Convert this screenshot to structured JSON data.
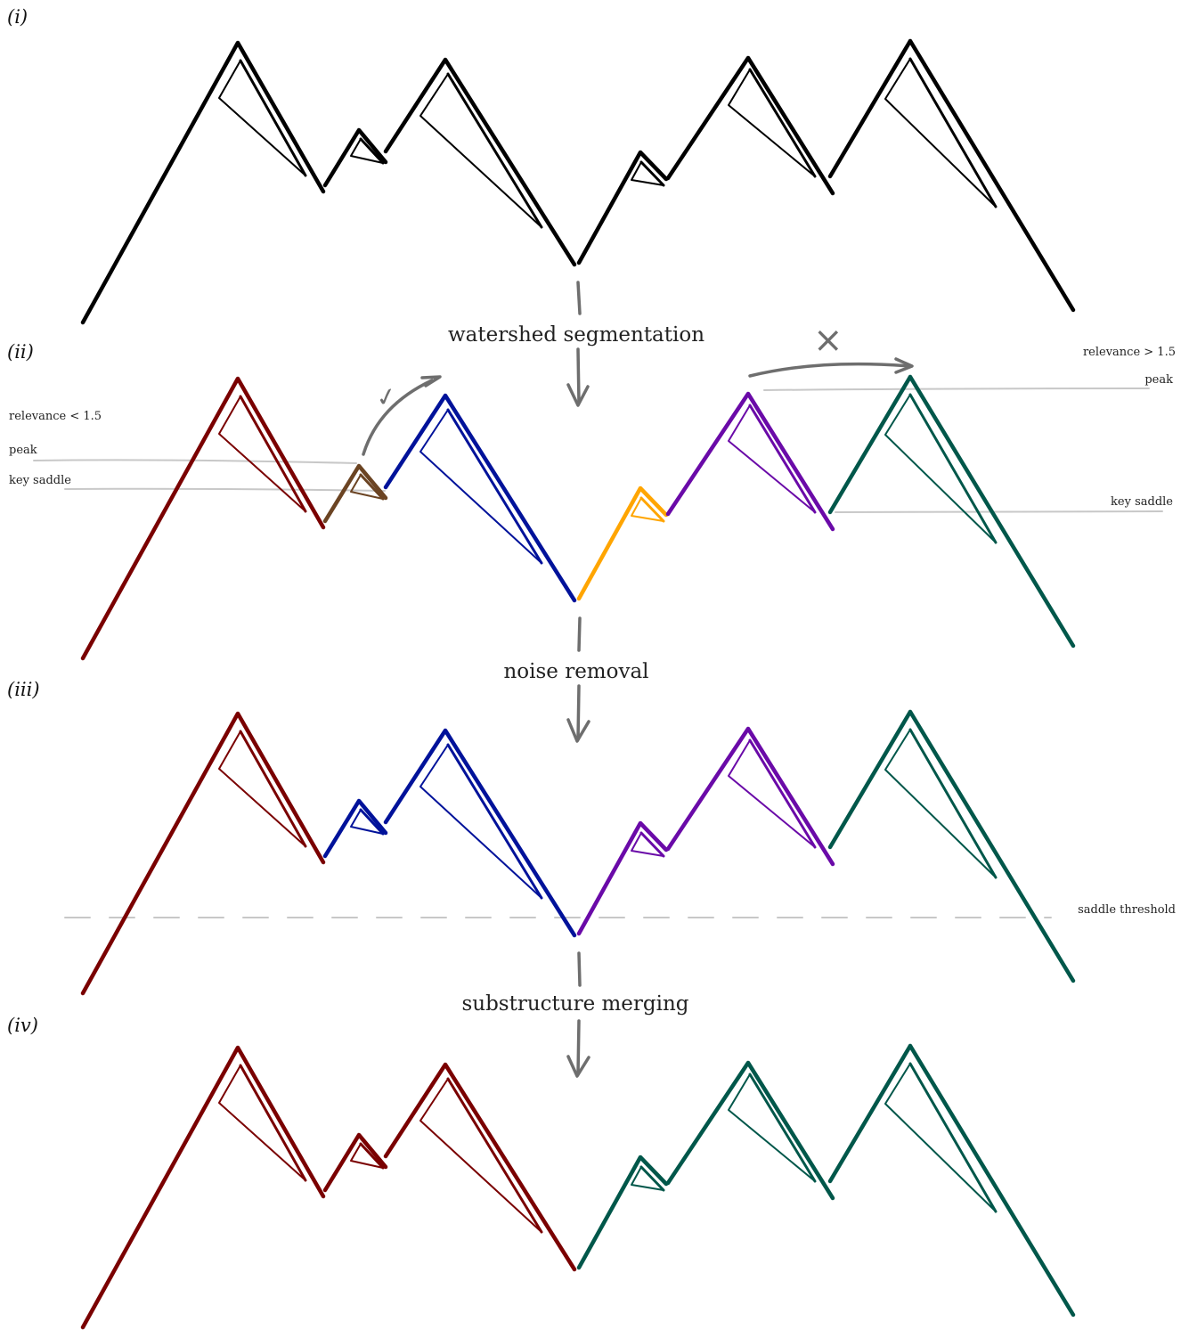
{
  "panels": [
    {
      "label": "(i)"
    },
    {
      "label": "(ii)"
    },
    {
      "label": "(iii)"
    },
    {
      "label": "(iv)"
    }
  ],
  "steps": {
    "step1": "watershed segmentation",
    "step2": "noise removal",
    "step3": "substructure merging"
  },
  "annotations": {
    "relevance_low": "relevance < 1.5",
    "peak_left": "peak",
    "key_saddle_left": "key saddle",
    "relevance_high": "relevance > 1.5",
    "peak_right": "peak",
    "key_saddle_right": "key saddle",
    "saddle_threshold": "saddle threshold",
    "accept_mark": "✓",
    "reject_mark": "×"
  },
  "colors": {
    "black": "#000000",
    "dark_red": "#7a0000",
    "brown": "#6b4423",
    "blue": "#00129a",
    "orange": "#ffa500",
    "purple": "#6a0aa8",
    "teal": "#00574a",
    "guide_gray": "#c8c8c8",
    "arrow_gray": "#6e6e6e"
  },
  "segment_colors": [
    [
      "black",
      "black",
      "black",
      "black",
      "black",
      "black",
      "black"
    ],
    [
      "dark_red",
      "brown",
      "blue",
      "orange",
      "purple",
      "teal",
      "teal"
    ],
    [
      "dark_red",
      "blue",
      "blue",
      "purple",
      "purple",
      "teal",
      "teal"
    ],
    [
      "dark_red",
      "dark_red",
      "dark_red",
      "teal",
      "teal",
      "teal",
      "teal"
    ]
  ]
}
